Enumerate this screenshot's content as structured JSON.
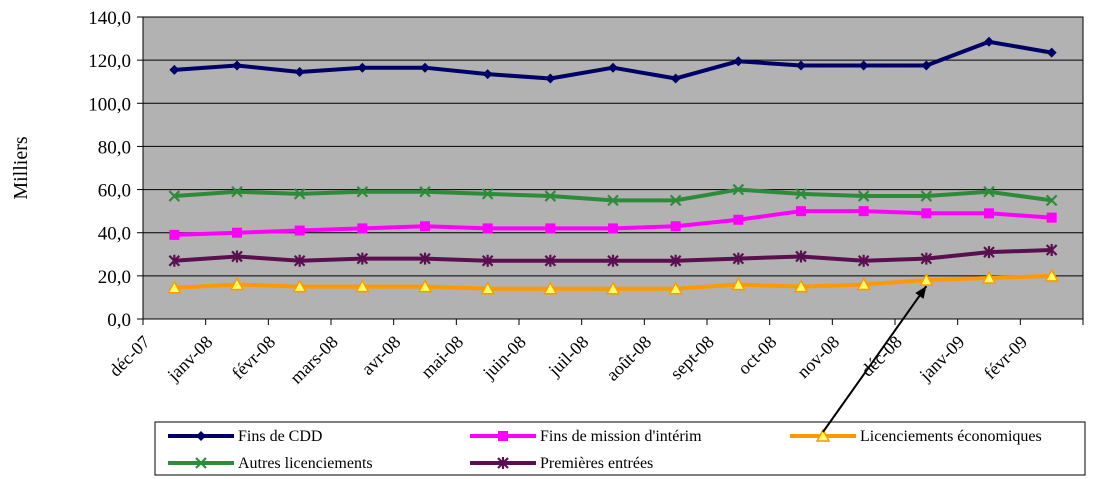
{
  "chart_data": {
    "type": "line",
    "ylabel": "Milliers",
    "ylim": [
      0,
      140
    ],
    "yticks": [
      "0,0",
      "20,0",
      "40,0",
      "60,0",
      "80,0",
      "100,0",
      "120,0",
      "140,0"
    ],
    "categories": [
      "déc-07",
      "janv-08",
      "févr-08",
      "mars-08",
      "avr-08",
      "mai-08",
      "juin-08",
      "juil-08",
      "août-08",
      "sept-08",
      "oct-08",
      "nov-08",
      "déc-08",
      "janv-09",
      "févr-09"
    ],
    "grid": true,
    "legend_position": "bottom",
    "series": [
      {
        "name": "Fins de CDD",
        "color": "#000066",
        "marker": "diamond",
        "values": [
          115.5,
          117.5,
          114.5,
          116.5,
          116.5,
          113.5,
          111.5,
          116.5,
          111.5,
          119.5,
          117.5,
          117.5,
          117.5,
          128.5,
          123.5
        ]
      },
      {
        "name": "Fins de mission d'intérim",
        "color": "#ff00ff",
        "marker": "square",
        "values": [
          39,
          40,
          41,
          42,
          43,
          42,
          42,
          42,
          43,
          46,
          50,
          50,
          49,
          49,
          47
        ]
      },
      {
        "name": "Licenciements économiques",
        "color": "#ff9900",
        "marker": "triangle",
        "values": [
          14.5,
          16,
          15,
          15,
          15,
          14,
          14,
          14,
          14,
          16,
          15,
          16,
          18,
          19,
          20
        ]
      },
      {
        "name": "Autres licenciements",
        "color": "#2e8b3a",
        "marker": "x",
        "values": [
          57,
          59,
          58,
          59,
          59,
          58,
          57,
          55,
          55,
          60,
          58,
          57,
          57,
          59,
          55
        ]
      },
      {
        "name": "Premières entrées",
        "color": "#5a0f4f",
        "marker": "star",
        "values": [
          27,
          29,
          27,
          28,
          28,
          27,
          27,
          27,
          27,
          28,
          29,
          27,
          28,
          31,
          32
        ]
      }
    ],
    "annotation": {
      "type": "arrow",
      "from_legend": "Licenciements économiques",
      "to_category": "déc-08",
      "to_value": 18
    }
  }
}
